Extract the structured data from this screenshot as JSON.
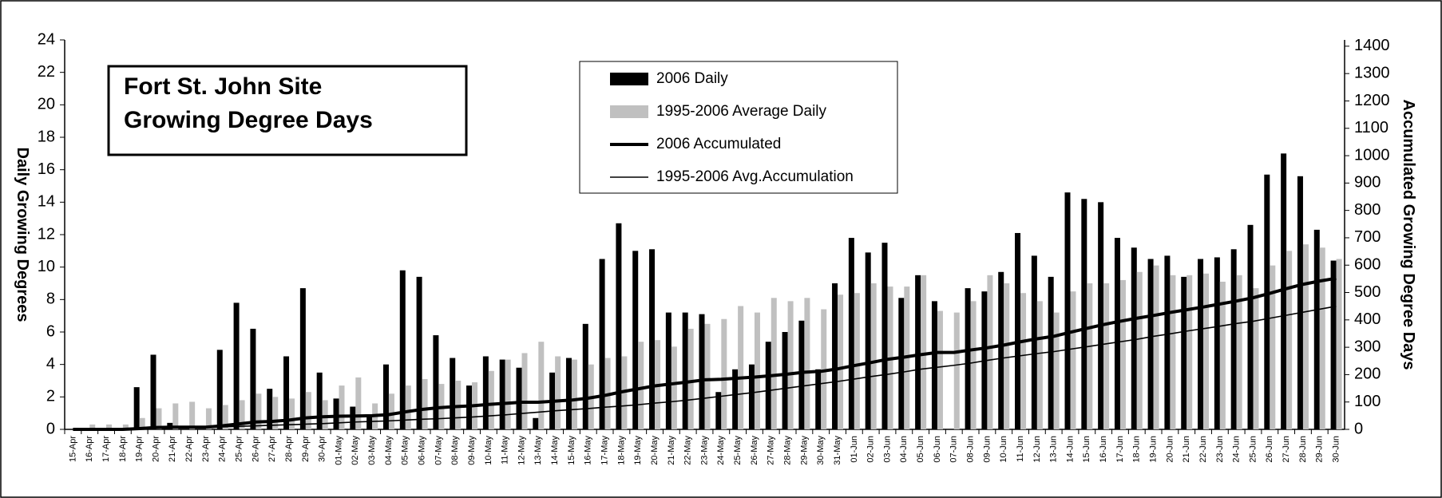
{
  "chart_data": {
    "type": "combo",
    "title": [
      "Fort St. John Site",
      "Growing Degree Days"
    ],
    "y_label": "Daily Growing Degrees",
    "y2_label": "Accumulated Growing Degree Days",
    "categories": [
      "15-Apr",
      "16-Apr",
      "17-Apr",
      "18-Apr",
      "19-Apr",
      "20-Apr",
      "21-Apr",
      "22-Apr",
      "23-Apr",
      "24-Apr",
      "25-Apr",
      "26-Apr",
      "27-Apr",
      "28-Apr",
      "29-Apr",
      "30-Apr",
      "01-May",
      "02-May",
      "03-May",
      "04-May",
      "05-May",
      "06-May",
      "07-May",
      "08-May",
      "09-May",
      "10-May",
      "11-May",
      "12-May",
      "13-May",
      "14-May",
      "15-May",
      "16-May",
      "17-May",
      "18-May",
      "19-May",
      "20-May",
      "21-May",
      "22-May",
      "23-May",
      "24-May",
      "25-May",
      "26-May",
      "27-May",
      "28-May",
      "29-May",
      "30-May",
      "31-May",
      "01-Jun",
      "02-Jun",
      "03-Jun",
      "04-Jun",
      "05-Jun",
      "06-Jun",
      "07-Jun",
      "08-Jun",
      "09-Jun",
      "10-Jun",
      "11-Jun",
      "12-Jun",
      "13-Jun",
      "14-Jun",
      "15-Jun",
      "16-Jun",
      "17-Jun",
      "18-Jun",
      "19-Jun",
      "20-Jun",
      "21-Jun",
      "22-Jun",
      "23-Jun",
      "24-Jun",
      "25-Jun",
      "26-Jun",
      "27-Jun",
      "28-Jun",
      "29-Jun",
      "30-Jun"
    ],
    "series": [
      {
        "name": "2006 Daily",
        "type": "bar",
        "color": "#000000",
        "values": [
          0,
          0,
          0,
          0,
          2.6,
          4.6,
          0.4,
          0,
          0,
          4.9,
          7.8,
          6.2,
          2.5,
          4.5,
          8.7,
          3.5,
          1.9,
          1.4,
          0.9,
          4.0,
          9.8,
          9.4,
          5.8,
          4.4,
          2.7,
          4.5,
          4.3,
          3.8,
          0.7,
          3.5,
          4.4,
          6.5,
          10.5,
          12.7,
          11.0,
          11.1,
          7.2,
          7.2,
          7.1,
          2.3,
          3.7,
          4.0,
          5.4,
          6.0,
          6.7,
          3.7,
          9.0,
          11.8,
          10.9,
          11.5,
          8.1,
          9.5,
          7.9,
          0,
          8.7,
          8.5,
          9.7,
          12.1,
          10.7,
          9.4,
          14.6,
          14.2,
          14.0,
          11.8,
          11.2,
          10.5,
          10.7,
          9.4,
          10.5,
          10.6,
          11.1,
          12.6,
          15.7,
          17.0,
          15.6,
          12.3,
          10.4
        ]
      },
      {
        "name": "1995-2006 Average Daily",
        "type": "bar",
        "color": "#c0c0c0",
        "values": [
          0.1,
          0.3,
          0.3,
          0.3,
          0.7,
          1.3,
          1.6,
          1.7,
          1.3,
          1.5,
          1.8,
          2.2,
          2.0,
          1.9,
          2.3,
          1.8,
          2.7,
          3.2,
          1.6,
          2.2,
          2.7,
          3.1,
          2.8,
          3.0,
          2.9,
          3.6,
          4.3,
          4.7,
          5.4,
          4.5,
          4.3,
          4.0,
          4.4,
          4.5,
          5.4,
          5.5,
          5.1,
          6.2,
          6.5,
          6.8,
          7.6,
          7.2,
          8.1,
          7.9,
          8.1,
          7.4,
          8.3,
          8.4,
          9.0,
          8.8,
          8.8,
          9.5,
          7.3,
          7.2,
          7.9,
          9.5,
          9.0,
          8.4,
          7.9,
          7.2,
          8.5,
          9.0,
          9.0,
          9.2,
          9.7,
          10.1,
          9.5,
          9.5,
          9.6,
          9.1,
          9.5,
          8.7,
          10.1,
          11.0,
          11.4,
          11.2,
          10.5
        ]
      },
      {
        "name": "2006 Accumulated",
        "type": "line",
        "axis": "y2",
        "color": "#000000",
        "values": [
          0,
          0,
          0,
          0,
          3,
          7,
          8,
          8,
          8,
          13,
          20,
          27,
          29,
          34,
          42,
          46,
          48,
          49,
          50,
          54,
          64,
          73,
          79,
          83,
          86,
          91,
          95,
          99,
          99,
          103,
          107,
          114,
          124,
          137,
          148,
          159,
          166,
          173,
          181,
          183,
          187,
          191,
          196,
          202,
          209,
          212,
          221,
          233,
          244,
          256,
          264,
          273,
          281,
          281,
          290,
          298,
          308,
          320,
          331,
          340,
          355,
          369,
          383,
          395,
          406,
          416,
          427,
          437,
          447,
          458,
          469,
          481,
          497,
          514,
          530,
          542,
          552
        ]
      },
      {
        "name": "1995-2006 Avg.Accumulation",
        "type": "line",
        "axis": "y2",
        "color": "#000000",
        "values": [
          0,
          0,
          1,
          1,
          2,
          3,
          5,
          6,
          8,
          9,
          11,
          13,
          15,
          17,
          19,
          21,
          24,
          27,
          29,
          31,
          34,
          37,
          39,
          42,
          45,
          49,
          53,
          58,
          63,
          68,
          72,
          76,
          81,
          85,
          90,
          96,
          101,
          107,
          114,
          121,
          128,
          135,
          143,
          151,
          159,
          167,
          175,
          184,
          193,
          201,
          210,
          220,
          227,
          234,
          242,
          252,
          261,
          269,
          277,
          284,
          293,
          302,
          311,
          320,
          329,
          340,
          349,
          359,
          368,
          377,
          387,
          395,
          406,
          417,
          428,
          439,
          450
        ]
      }
    ],
    "ylim": [
      0,
      24
    ],
    "yticks": [
      0,
      2,
      4,
      6,
      8,
      10,
      12,
      14,
      16,
      18,
      20,
      22,
      24
    ],
    "y2lim": [
      0,
      1423
    ],
    "y2ticks": [
      0,
      100,
      200,
      300,
      400,
      500,
      600,
      700,
      800,
      900,
      1000,
      1100,
      1200,
      1300,
      1400
    ],
    "grid": false
  }
}
